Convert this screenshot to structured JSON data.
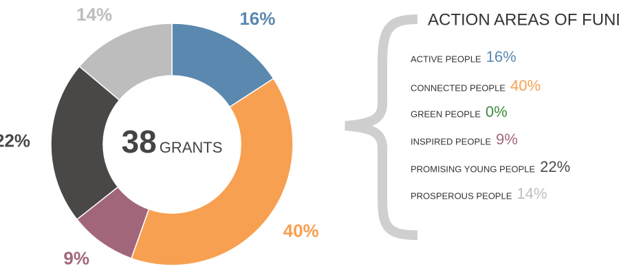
{
  "chart_data": {
    "type": "donut",
    "title": "ACTION AREAS OF FUNDING",
    "center_value": "38",
    "center_label": "GRANTS",
    "categories": [
      "ACTIVE PEOPLE",
      "CONNECTED PEOPLE",
      "GREEN PEOPLE",
      "INSPIRED PEOPLE",
      "PROMISING YOUNG PEOPLE",
      "PROSPEROUS PEOPLE"
    ],
    "values": [
      16,
      40,
      0,
      9,
      22,
      14
    ],
    "value_labels": [
      "16%",
      "40%",
      "0%",
      "9%",
      "22%",
      "14%"
    ],
    "colors": [
      "#5b88ae",
      "#f7a051",
      "#3d8c40",
      "#a2667b",
      "#4a4846",
      "#bdbdbd"
    ]
  }
}
